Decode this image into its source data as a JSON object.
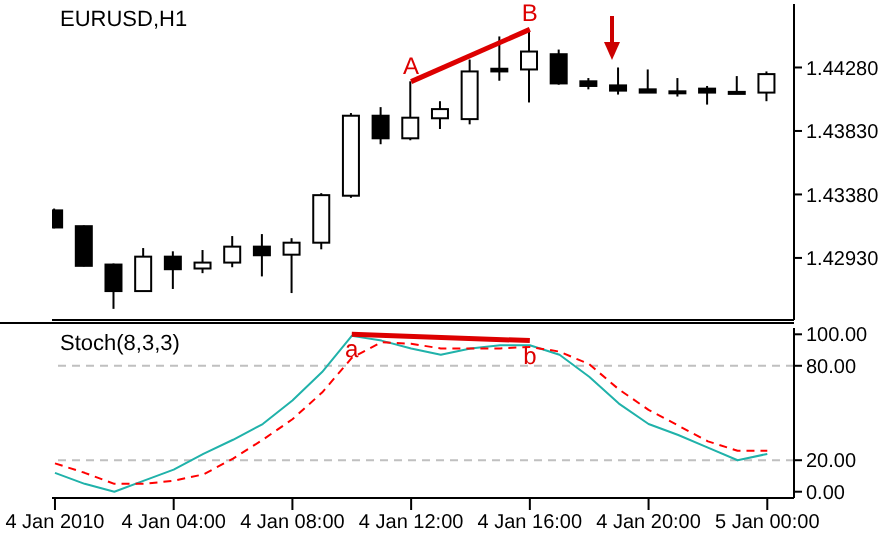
{
  "chart_data": [
    {
      "type": "candlestick",
      "title": "EURUSD,H1",
      "ohlc": [
        [
          1.43267,
          1.4328,
          1.4314,
          1.43146
        ],
        [
          1.43155,
          1.4316,
          1.4287,
          1.42874
        ],
        [
          1.42883,
          1.4289,
          1.42569,
          1.42695
        ],
        [
          1.42695,
          1.43,
          1.4269,
          1.42939
        ],
        [
          1.42939,
          1.42977,
          1.4271,
          1.4285
        ],
        [
          1.42855,
          1.42986,
          1.42822,
          1.42897
        ],
        [
          1.42897,
          1.43085,
          1.42864,
          1.4301
        ],
        [
          1.4301,
          1.43099,
          1.42799,
          1.42949
        ],
        [
          1.42953,
          1.4307,
          1.42681,
          1.43038
        ],
        [
          1.43038,
          1.43389,
          1.42991,
          1.43375
        ],
        [
          1.43371,
          1.43957,
          1.43356,
          1.43938
        ],
        [
          1.43938,
          1.43999,
          1.43736,
          1.43778
        ],
        [
          1.43778,
          1.44182,
          1.43764,
          1.43924
        ],
        [
          1.4392,
          1.44041,
          1.43844,
          1.43985
        ],
        [
          1.43914,
          1.44336,
          1.43877,
          1.44252
        ],
        [
          1.44271,
          1.445,
          1.44186,
          1.44252
        ],
        [
          1.44266,
          1.44547,
          1.44032,
          1.44393
        ],
        [
          1.44374,
          1.44407,
          1.44158,
          1.44167
        ],
        [
          1.44182,
          1.44205,
          1.44125,
          1.44149
        ],
        [
          1.44153,
          1.4428,
          1.44088,
          1.44116
        ],
        [
          1.44125,
          1.44266,
          1.44102,
          1.44102
        ],
        [
          1.44111,
          1.44205,
          1.44074,
          1.44107
        ],
        [
          1.4413,
          1.44149,
          1.44017,
          1.44102
        ],
        [
          1.44107,
          1.44219,
          1.44102,
          1.44102
        ],
        [
          1.44102,
          1.44252,
          1.44041,
          1.44233
        ]
      ],
      "series": [
        {
          "type": "line",
          "color": "#dd0000",
          "values": [
            null,
            null,
            null,
            null,
            null,
            null,
            null,
            null,
            null,
            null,
            null,
            null,
            1.4418,
            null,
            null,
            null,
            1.4455,
            null,
            null,
            null,
            null,
            null,
            null,
            null,
            null
          ]
        }
      ],
      "ylim": [
        1.4249,
        1.4473
      ],
      "yticks": [
        {
          "value": 1.4293,
          "label": "1.42930"
        },
        {
          "value": 1.4338,
          "label": "1.43380"
        },
        {
          "value": 1.4383,
          "label": "1.43830"
        },
        {
          "value": 1.4428,
          "label": "1.44280"
        }
      ],
      "tick_labels": "y",
      "annotations": [
        "A",
        "B"
      ]
    },
    {
      "type": "line",
      "title": "Stoch(8,3,3)",
      "categories": [
        "4 Jan 2010",
        null,
        null,
        null,
        "4 Jan 04:00",
        null,
        null,
        null,
        "4 Jan 08:00",
        null,
        null,
        null,
        "4 Jan 12:00",
        null,
        null,
        null,
        "4 Jan 16:00",
        null,
        null,
        null,
        "4 Jan 20:00",
        null,
        null,
        null,
        "5 Jan 00:00"
      ],
      "series": [
        {
          "color": "#20b2aa",
          "values": [
            12,
            5,
            0,
            7,
            14,
            24,
            33,
            43,
            58,
            76,
            99,
            96,
            91,
            87,
            91,
            93,
            93,
            87,
            73,
            56,
            43,
            36,
            28,
            20,
            24
          ]
        },
        {
          "color": "#ff0000",
          "line_style": "dashed",
          "values": [
            18,
            12,
            5,
            5,
            7,
            11,
            21,
            33,
            46,
            63,
            85,
            95,
            94,
            91,
            91,
            91,
            92,
            89,
            81,
            65,
            52,
            42,
            32,
            26,
            26
          ]
        },
        {
          "color": "#dd0000",
          "values": [
            null,
            null,
            null,
            null,
            null,
            null,
            null,
            null,
            null,
            null,
            100,
            null,
            null,
            null,
            null,
            null,
            96,
            null,
            null,
            null,
            null,
            null,
            null,
            null,
            null
          ]
        }
      ],
      "ylim": [
        -4,
        104
      ],
      "yticks": [
        {
          "value": 0,
          "label": "0.00"
        },
        {
          "value": 20,
          "label": "20.00"
        },
        {
          "value": 80,
          "label": "80.00"
        },
        {
          "value": 100,
          "label": "100.00"
        }
      ],
      "ref_lines": [
        {
          "axis": "y",
          "value": 20,
          "color": "#c0c0c0",
          "line_style": "dashed"
        },
        {
          "axis": "y",
          "value": 80,
          "color": "#c0c0c0",
          "line_style": "dashed"
        }
      ],
      "annotations": [
        "a",
        "b"
      ]
    }
  ]
}
